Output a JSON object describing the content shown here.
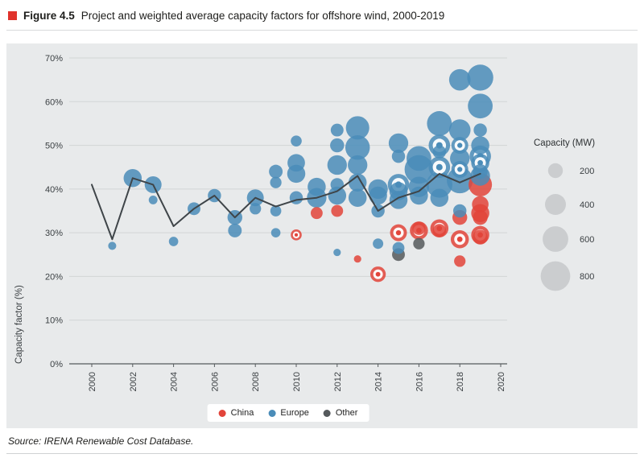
{
  "figure": {
    "label": "Figure 4.5",
    "title": "Project and weighted average capacity factors for offshore wind, 2000-2019",
    "accent_color": "#e0332c"
  },
  "source": "Source: IRENA Renewable Cost Database.",
  "chart_data": {
    "type": "scatter",
    "title": "Project and weighted average capacity factors for offshore wind, 2000-2019",
    "xlabel": "",
    "ylabel": "Capacity factor (%)",
    "x_range": [
      2000,
      2020
    ],
    "y_range": [
      0,
      70
    ],
    "x_ticks": [
      2000,
      2002,
      2004,
      2006,
      2008,
      2010,
      2012,
      2014,
      2016,
      2018,
      2020
    ],
    "y_ticks": [
      0,
      10,
      20,
      30,
      40,
      50,
      60,
      70
    ],
    "grid": "horizontal",
    "legend_position": "bottom",
    "legend": [
      {
        "label": "China",
        "color": "#e2443a"
      },
      {
        "label": "Europe",
        "color": "#4a8cb8"
      },
      {
        "label": "Other",
        "color": "#55595c"
      }
    ],
    "colors": {
      "china": "#e2443a",
      "europe": "#4a8cb8",
      "other": "#55595c",
      "line": "#3f4549",
      "size_circle": "#c9cbcd"
    },
    "size_legend": {
      "title": "Capacity (MW)",
      "values": [
        200,
        400,
        600,
        800
      ]
    },
    "weighted_average": {
      "name": "Weighted average",
      "x": [
        2000,
        2001,
        2002,
        2003,
        2004,
        2005,
        2006,
        2007,
        2008,
        2009,
        2010,
        2011,
        2012,
        2013,
        2014,
        2015,
        2016,
        2017,
        2018,
        2019
      ],
      "y": [
        41,
        28.5,
        42.5,
        41,
        31.5,
        35.5,
        38.5,
        33.5,
        38,
        36,
        37.5,
        38,
        39.5,
        43,
        35,
        38,
        39.5,
        43.5,
        41.5,
        43.5
      ]
    },
    "bubbles": [
      {
        "year": 2001,
        "cf": 27,
        "mw": 60,
        "region": "europe"
      },
      {
        "year": 2002,
        "cf": 42.5,
        "mw": 300,
        "region": "europe"
      },
      {
        "year": 2003,
        "cf": 41,
        "mw": 260,
        "region": "europe"
      },
      {
        "year": 2003,
        "cf": 37.5,
        "mw": 70,
        "region": "europe"
      },
      {
        "year": 2004,
        "cf": 28,
        "mw": 80,
        "region": "europe"
      },
      {
        "year": 2005,
        "cf": 35.5,
        "mw": 150,
        "region": "europe"
      },
      {
        "year": 2006,
        "cf": 38.5,
        "mw": 160,
        "region": "europe"
      },
      {
        "year": 2007,
        "cf": 33.5,
        "mw": 200,
        "region": "europe"
      },
      {
        "year": 2007,
        "cf": 30.5,
        "mw": 170,
        "region": "europe"
      },
      {
        "year": 2008,
        "cf": 38,
        "mw": 260,
        "region": "europe"
      },
      {
        "year": 2008,
        "cf": 35.5,
        "mw": 120,
        "region": "europe"
      },
      {
        "year": 2009,
        "cf": 44,
        "mw": 170,
        "region": "europe"
      },
      {
        "year": 2009,
        "cf": 41.5,
        "mw": 120,
        "region": "europe"
      },
      {
        "year": 2009,
        "cf": 35,
        "mw": 110,
        "region": "europe"
      },
      {
        "year": 2009,
        "cf": 30,
        "mw": 80,
        "region": "europe"
      },
      {
        "year": 2010,
        "cf": 51,
        "mw": 110,
        "region": "europe"
      },
      {
        "year": 2010,
        "cf": 46,
        "mw": 280,
        "region": "europe"
      },
      {
        "year": 2010,
        "cf": 43.5,
        "mw": 300,
        "region": "europe"
      },
      {
        "year": 2010,
        "cf": 38,
        "mw": 160,
        "region": "europe"
      },
      {
        "year": 2011,
        "cf": 40.5,
        "mw": 300,
        "region": "europe"
      },
      {
        "year": 2011,
        "cf": 38,
        "mw": 350,
        "region": "europe"
      },
      {
        "year": 2012,
        "cf": 53.5,
        "mw": 150,
        "region": "europe"
      },
      {
        "year": 2012,
        "cf": 50,
        "mw": 180,
        "region": "europe"
      },
      {
        "year": 2012,
        "cf": 45.5,
        "mw": 350,
        "region": "europe"
      },
      {
        "year": 2012,
        "cf": 41,
        "mw": 160,
        "region": "europe"
      },
      {
        "year": 2012,
        "cf": 38.5,
        "mw": 300,
        "region": "europe"
      },
      {
        "year": 2012,
        "cf": 25.5,
        "mw": 50,
        "region": "europe"
      },
      {
        "year": 2013,
        "cf": 54,
        "mw": 500,
        "region": "europe"
      },
      {
        "year": 2013,
        "cf": 49.5,
        "mw": 550,
        "region": "europe"
      },
      {
        "year": 2013,
        "cf": 45.5,
        "mw": 350,
        "region": "europe"
      },
      {
        "year": 2013,
        "cf": 41.5,
        "mw": 300,
        "region": "europe"
      },
      {
        "year": 2013,
        "cf": 38,
        "mw": 300,
        "region": "europe"
      },
      {
        "year": 2014,
        "cf": 40,
        "mw": 350,
        "region": "europe"
      },
      {
        "year": 2014,
        "cf": 38.5,
        "mw": 300,
        "region": "europe"
      },
      {
        "year": 2014,
        "cf": 35,
        "mw": 160,
        "region": "europe"
      },
      {
        "year": 2014,
        "cf": 27.5,
        "mw": 100,
        "region": "europe"
      },
      {
        "year": 2015,
        "cf": 50.5,
        "mw": 350,
        "region": "europe"
      },
      {
        "year": 2015,
        "cf": 47.5,
        "mw": 160,
        "region": "europe"
      },
      {
        "year": 2015,
        "cf": 41,
        "mw": 420,
        "region": "europe",
        "ring": true
      },
      {
        "year": 2015,
        "cf": 39.5,
        "mw": 300,
        "region": "europe"
      },
      {
        "year": 2015,
        "cf": 37.5,
        "mw": 300,
        "region": "europe"
      },
      {
        "year": 2015,
        "cf": 26.5,
        "mw": 130,
        "region": "europe"
      },
      {
        "year": 2016,
        "cf": 47,
        "mw": 560,
        "region": "europe"
      },
      {
        "year": 2016,
        "cf": 44.5,
        "mw": 750,
        "region": "europe"
      },
      {
        "year": 2016,
        "cf": 40.5,
        "mw": 380,
        "region": "europe"
      },
      {
        "year": 2016,
        "cf": 38.5,
        "mw": 300,
        "region": "europe"
      },
      {
        "year": 2017,
        "cf": 55,
        "mw": 560,
        "region": "europe"
      },
      {
        "year": 2017,
        "cf": 50,
        "mw": 420,
        "region": "europe",
        "ring": true
      },
      {
        "year": 2017,
        "cf": 48.5,
        "mw": 160,
        "region": "europe"
      },
      {
        "year": 2017,
        "cf": 45,
        "mw": 420,
        "region": "europe",
        "ring": true
      },
      {
        "year": 2017,
        "cf": 41,
        "mw": 620,
        "region": "europe"
      },
      {
        "year": 2017,
        "cf": 38,
        "mw": 300,
        "region": "europe"
      },
      {
        "year": 2018,
        "cf": 65,
        "mw": 420,
        "region": "europe"
      },
      {
        "year": 2018,
        "cf": 53.5,
        "mw": 420,
        "region": "europe"
      },
      {
        "year": 2018,
        "cf": 50,
        "mw": 260,
        "region": "europe",
        "ring": true
      },
      {
        "year": 2018,
        "cf": 47,
        "mw": 350,
        "region": "europe"
      },
      {
        "year": 2018,
        "cf": 44.5,
        "mw": 260,
        "region": "europe",
        "ring": true
      },
      {
        "year": 2018,
        "cf": 42,
        "mw": 620,
        "region": "europe"
      },
      {
        "year": 2018,
        "cf": 35,
        "mw": 160,
        "region": "europe"
      },
      {
        "year": 2019,
        "cf": 65.5,
        "mw": 620,
        "region": "europe"
      },
      {
        "year": 2019,
        "cf": 59,
        "mw": 560,
        "region": "europe"
      },
      {
        "year": 2019,
        "cf": 53.5,
        "mw": 160,
        "region": "europe"
      },
      {
        "year": 2019,
        "cf": 50,
        "mw": 300,
        "region": "europe"
      },
      {
        "year": 2019,
        "cf": 47.5,
        "mw": 420,
        "region": "europe",
        "ring": true
      },
      {
        "year": 2019,
        "cf": 46,
        "mw": 300,
        "region": "europe",
        "ring": true
      },
      {
        "year": 2019,
        "cf": 44,
        "mw": 200,
        "region": "europe"
      },
      {
        "year": 2019,
        "cf": 43,
        "mw": 350,
        "region": "europe"
      },
      {
        "year": 2010,
        "cf": 29.5,
        "mw": 110,
        "region": "china",
        "ring": true
      },
      {
        "year": 2011,
        "cf": 34.5,
        "mw": 130,
        "region": "china"
      },
      {
        "year": 2012,
        "cf": 35,
        "mw": 130,
        "region": "china"
      },
      {
        "year": 2013,
        "cf": 24,
        "mw": 50,
        "region": "china"
      },
      {
        "year": 2014,
        "cf": 20.5,
        "mw": 220,
        "region": "china",
        "ring": true
      },
      {
        "year": 2015,
        "cf": 30,
        "mw": 260,
        "region": "china",
        "ring": true
      },
      {
        "year": 2016,
        "cf": 30.5,
        "mw": 300,
        "region": "china",
        "ring": true
      },
      {
        "year": 2016,
        "cf": 31,
        "mw": 160,
        "region": "china"
      },
      {
        "year": 2017,
        "cf": 31,
        "mw": 300,
        "region": "china",
        "ring": true
      },
      {
        "year": 2017,
        "cf": 30.5,
        "mw": 160,
        "region": "china"
      },
      {
        "year": 2018,
        "cf": 33.5,
        "mw": 200,
        "region": "china"
      },
      {
        "year": 2018,
        "cf": 28.5,
        "mw": 300,
        "region": "china",
        "ring": true
      },
      {
        "year": 2018,
        "cf": 23.5,
        "mw": 120,
        "region": "china"
      },
      {
        "year": 2019,
        "cf": 41,
        "mw": 500,
        "region": "china"
      },
      {
        "year": 2019,
        "cf": 36.5,
        "mw": 250,
        "region": "china"
      },
      {
        "year": 2019,
        "cf": 34.5,
        "mw": 300,
        "region": "china"
      },
      {
        "year": 2019,
        "cf": 33.5,
        "mw": 200,
        "region": "china"
      },
      {
        "year": 2019,
        "cf": 29.5,
        "mw": 300,
        "region": "china",
        "ring": true
      },
      {
        "year": 2019,
        "cf": 29,
        "mw": 200,
        "region": "china"
      },
      {
        "year": 2015,
        "cf": 25,
        "mw": 150,
        "region": "other"
      },
      {
        "year": 2016,
        "cf": 27.5,
        "mw": 120,
        "region": "other"
      }
    ]
  }
}
